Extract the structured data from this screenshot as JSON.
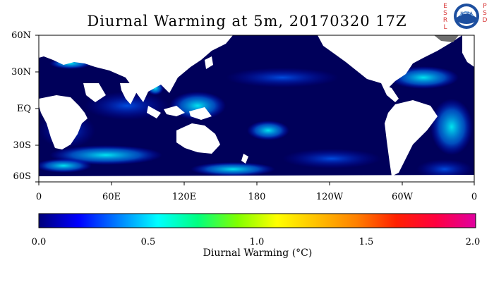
{
  "title": "Diurnal Warming at 5m, 20170320 17Z",
  "lat_labels": [
    "60N",
    "30N",
    "EQ",
    "30S",
    "60S"
  ],
  "lon_labels": [
    "0",
    "60E",
    "120E",
    "180",
    "120W",
    "60W",
    "0"
  ],
  "colorbar": {
    "ticks": [
      "0.0",
      "0.5",
      "1.0",
      "1.5",
      "2.0"
    ],
    "label": "Diurnal Warming (°C)",
    "range": [
      0.0,
      2.0
    ],
    "colors": [
      "#00007a",
      "#0000ff",
      "#0080ff",
      "#00ffff",
      "#00ff80",
      "#80ff00",
      "#ffff00",
      "#ffc000",
      "#ff8000",
      "#ff2000",
      "#ff0040",
      "#e000a0"
    ]
  },
  "logos": {
    "left_letters": "ESRL",
    "right_letters": "PSD",
    "noaa_text": "NOAA",
    "noaa_icon": "noaa-logo-icon"
  },
  "map": {
    "ocean_color": "#00005a",
    "land_color": "#ffffff",
    "lat_range": [
      -60,
      60
    ],
    "lon_range": [
      0,
      360
    ]
  }
}
